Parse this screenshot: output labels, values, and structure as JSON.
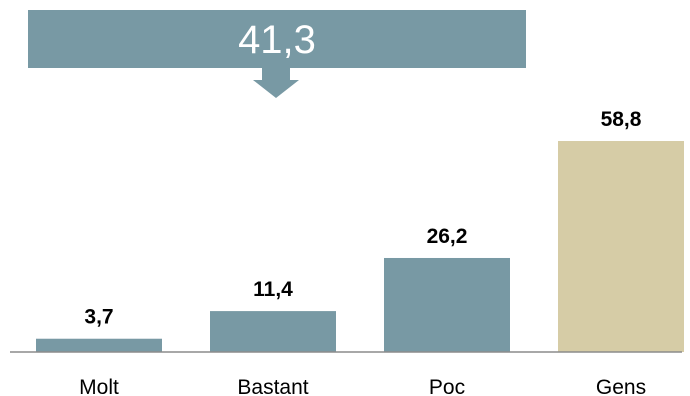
{
  "chart_data": {
    "type": "bar",
    "categories": [
      "Molt",
      "Bastant",
      "Poc",
      "Gens"
    ],
    "values": [
      3.7,
      11.4,
      26.2,
      58.8
    ],
    "value_labels": [
      "3,7",
      "11,4",
      "26,2",
      "58,8"
    ],
    "callout": {
      "value": 41.3,
      "label": "41,3"
    },
    "title": "",
    "xlabel": "",
    "ylabel": "",
    "ylim": [
      0,
      58.8
    ],
    "grid": false,
    "legend": "none",
    "colors": {
      "primary": "#7899a4",
      "highlight": "#d6cca6",
      "axis": "#8c8c8c",
      "label": "#000000",
      "callout_text": "#ffffff"
    }
  }
}
